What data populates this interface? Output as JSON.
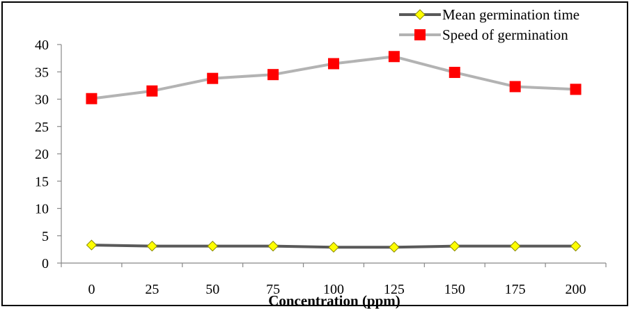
{
  "chart_data": {
    "type": "line",
    "title": "",
    "xlabel": "Concentration (ppm)",
    "ylabel": "",
    "categories": [
      "0",
      "25",
      "50",
      "75",
      "100",
      "125",
      "150",
      "175",
      "200"
    ],
    "ylim": [
      0,
      40
    ],
    "yticks": [
      0,
      5,
      10,
      15,
      20,
      25,
      30,
      35,
      40
    ],
    "grid": false,
    "legend_position": "top-right",
    "series": [
      {
        "name": "Mean germination time",
        "values": [
          3.3,
          3.1,
          3.1,
          3.1,
          2.9,
          2.9,
          3.1,
          3.1,
          3.1
        ],
        "line_color": "#595959",
        "marker": "diamond",
        "marker_color": "#ffff00"
      },
      {
        "name": "Speed of germination",
        "values": [
          30.1,
          31.5,
          33.8,
          34.5,
          36.5,
          37.8,
          34.9,
          32.3,
          31.8
        ],
        "line_color": "#b3b3b3",
        "marker": "square",
        "marker_color": "#ff0000"
      }
    ]
  }
}
